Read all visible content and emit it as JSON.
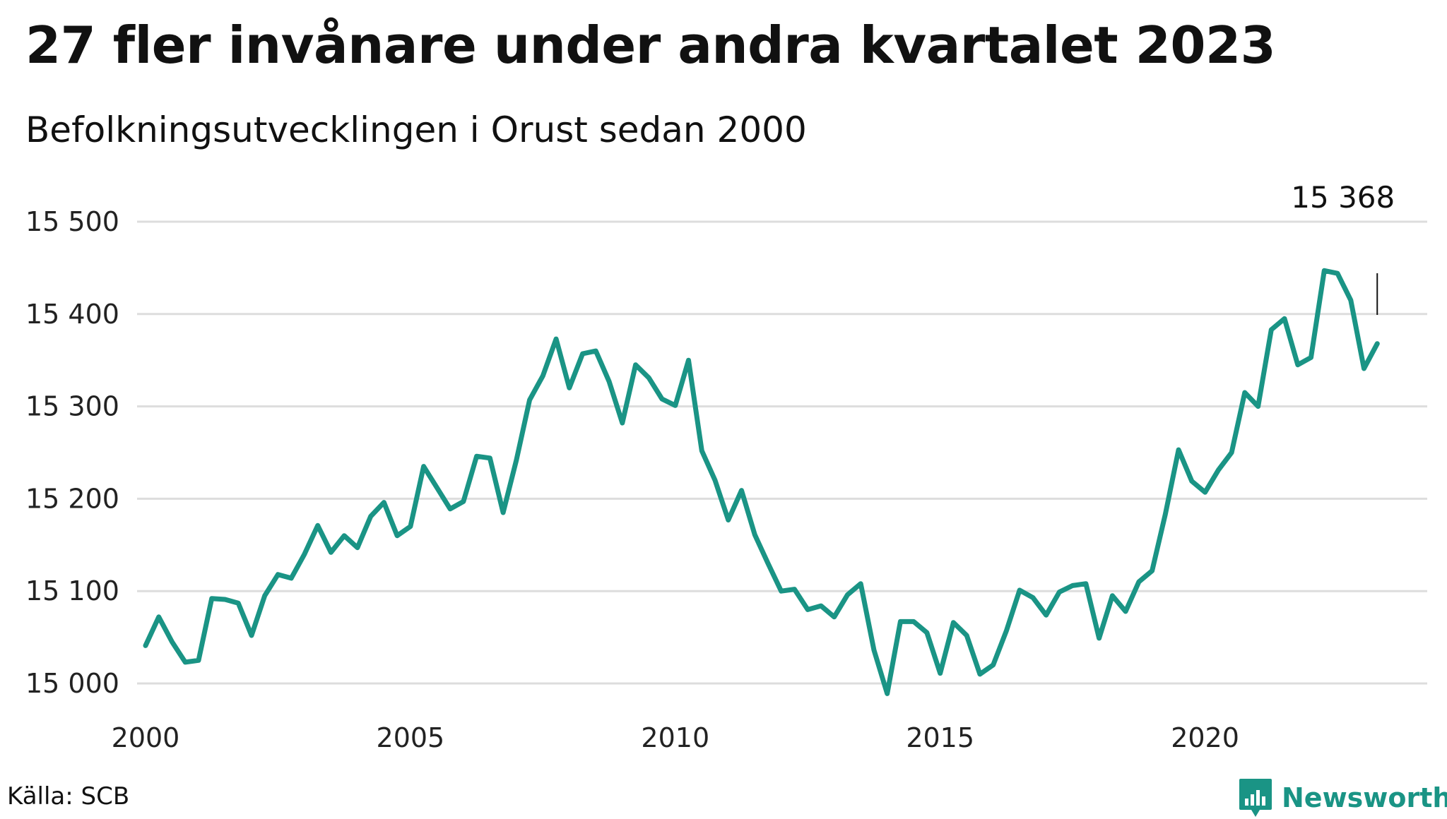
{
  "header": {
    "title": "27 fler invånare under andra kvartalet 2023",
    "subtitle": "Befolkningsutvecklingen i Orust sedan 2000"
  },
  "footer": {
    "source": "Källa: SCB",
    "brand_name": "Newsworthy"
  },
  "colors": {
    "line": "#1a9485",
    "grid": "#dddddd",
    "brand": "#1a9485"
  },
  "chart_data": {
    "type": "line",
    "title": "27 fler invånare under andra kvartalet 2023",
    "subtitle": "Befolkningsutvecklingen i Orust sedan 2000",
    "xlabel": "",
    "ylabel": "",
    "xlim": [
      2000,
      2023.5
    ],
    "ylim": [
      14990,
      15510
    ],
    "x_ticks": [
      2000,
      2005,
      2010,
      2015,
      2020
    ],
    "x_tick_labels": [
      "2000",
      "2005",
      "2010",
      "2015",
      "2020"
    ],
    "y_ticks": [
      15000,
      15100,
      15200,
      15300,
      15400,
      15500
    ],
    "y_tick_labels": [
      "15 000",
      "15 100",
      "15 200",
      "15 300",
      "15 400",
      "15 500"
    ],
    "grid": "horizontal",
    "end_label": "15 368",
    "series": [
      {
        "x": [
          2000.0,
          2000.25,
          2000.5,
          2000.75,
          2001.0,
          2001.25,
          2001.5,
          2001.75,
          2002.0,
          2002.25,
          2002.5,
          2002.75,
          2003.0,
          2003.25,
          2003.5,
          2003.75,
          2004.0,
          2004.25,
          2004.5,
          2004.75,
          2005.0,
          2005.25,
          2005.5,
          2005.75,
          2006.0,
          2006.25,
          2006.5,
          2006.75,
          2007.0,
          2007.25,
          2007.5,
          2007.75,
          2008.0,
          2008.25,
          2008.5,
          2008.75,
          2009.0,
          2009.25,
          2009.5,
          2009.75,
          2010.0,
          2010.25,
          2010.5,
          2010.75,
          2011.0,
          2011.25,
          2011.5,
          2011.75,
          2012.0,
          2012.25,
          2012.5,
          2012.75,
          2013.0,
          2013.25,
          2013.5,
          2013.75,
          2014.0,
          2014.25,
          2014.5,
          2014.75,
          2015.0,
          2015.25,
          2015.5,
          2015.75,
          2016.0,
          2016.25,
          2016.5,
          2016.75,
          2017.0,
          2017.25,
          2017.5,
          2017.75,
          2018.0,
          2018.25,
          2018.5,
          2018.75,
          2019.0,
          2019.25,
          2019.5,
          2019.75,
          2020.0,
          2020.25,
          2020.5,
          2020.75,
          2021.0,
          2021.25,
          2021.5,
          2021.75,
          2022.0,
          2022.25,
          2022.5,
          2022.75,
          2023.0,
          2023.25
        ],
        "values": [
          15041,
          15072,
          15045,
          15023,
          15025,
          15092,
          15091,
          15087,
          15052,
          15095,
          15118,
          15114,
          15140,
          15171,
          15142,
          15160,
          15147,
          15181,
          15196,
          15160,
          15170,
          15235,
          15212,
          15189,
          15197,
          15246,
          15244,
          15185,
          15242,
          15307,
          15333,
          15373,
          15320,
          15357,
          15360,
          15327,
          15282,
          15345,
          15331,
          15308,
          15301,
          15350,
          15252,
          15220,
          15177,
          15209,
          15161,
          15130,
          15100,
          15102,
          15080,
          15084,
          15072,
          15096,
          15108,
          15036,
          14989,
          15067,
          15067,
          15055,
          15011,
          15066,
          15052,
          15010,
          15020,
          15057,
          15101,
          15093,
          15074,
          15099,
          15106,
          15108,
          15049,
          15095,
          15078,
          15110,
          15122,
          15183,
          15253,
          15219,
          15207,
          15231,
          15250,
          15315,
          15300,
          15383,
          15395,
          15345,
          15353,
          15447,
          15444,
          15415,
          15341,
          15368
        ]
      }
    ]
  }
}
